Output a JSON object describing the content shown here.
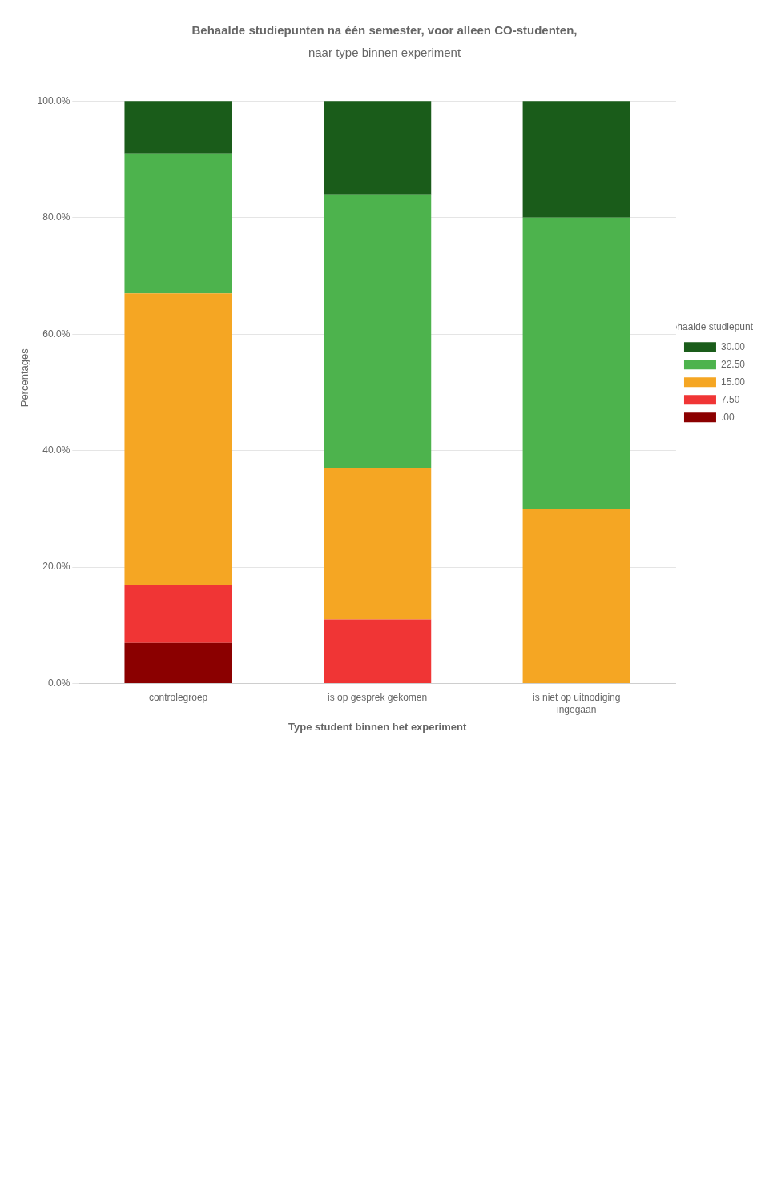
{
  "chart_data": {
    "type": "bar",
    "title": "Behaalde studiepunten na één semester, voor alleen CO-studenten,",
    "subtitle": "naar type binnen experiment",
    "x_label": "Type student binnen het experiment",
    "y_label": "Percentages",
    "legend_title": "Behaalde studiepunten",
    "categories": [
      "controlegroep",
      "is op gesprek gekomen",
      "is niet op uitnodiging\ningegaan"
    ],
    "series": [
      {
        "name": "30.00",
        "color": "#1a5c1a",
        "values": [
          9,
          16,
          20
        ]
      },
      {
        "name": "22.50",
        "color": "#4db34d",
        "values": [
          24,
          47,
          50
        ]
      },
      {
        "name": "15.00",
        "color": "#f5a623",
        "values": [
          50,
          26,
          30
        ]
      },
      {
        "name": "7.50",
        "color": "#f03535",
        "values": [
          10,
          11,
          0
        ]
      },
      {
        "name": ".00",
        "color": "#8b0000",
        "values": [
          7,
          0,
          0
        ]
      }
    ],
    "ylim": [
      0,
      105
    ],
    "yticks": [
      {
        "value": 0,
        "label": "0.0%"
      },
      {
        "value": 20,
        "label": "20.0%"
      },
      {
        "value": 40,
        "label": "40.0%"
      },
      {
        "value": 60,
        "label": "60.0%"
      },
      {
        "value": 80,
        "label": "80.0%"
      },
      {
        "value": 100,
        "label": "100.0%"
      }
    ],
    "stacked": true,
    "grid": true,
    "legend": "right"
  }
}
